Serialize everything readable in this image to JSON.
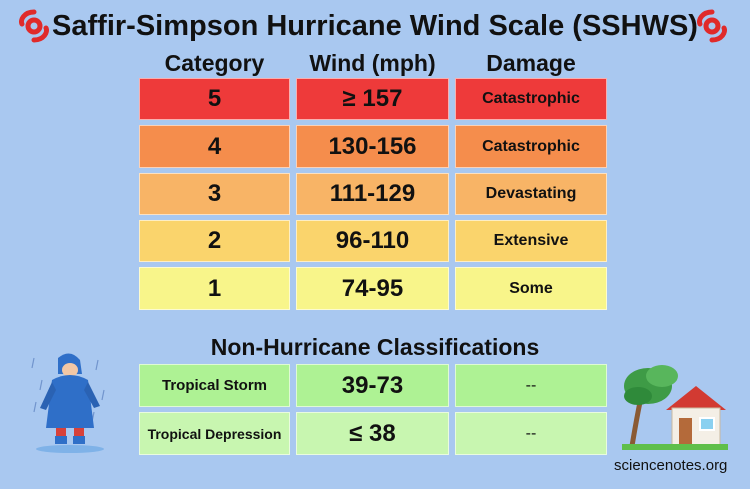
{
  "title": "Saffir-Simpson Hurricane Wind Scale (SSHWS)",
  "headers": {
    "category": "Category",
    "wind": "Wind (mph)",
    "damage": "Damage"
  },
  "hurricane_rows": [
    {
      "category": "5",
      "wind": "≥ 157",
      "damage": "Catastrophic",
      "color": "#ee3a3a"
    },
    {
      "category": "4",
      "wind": "130-156",
      "damage": "Catastrophic",
      "color": "#f58d4c"
    },
    {
      "category": "3",
      "wind": "111-129",
      "damage": "Devastating",
      "color": "#f8b466"
    },
    {
      "category": "2",
      "wind": "96-110",
      "damage": "Extensive",
      "color": "#fad46c"
    },
    {
      "category": "1",
      "wind": "74-95",
      "damage": "Some",
      "color": "#f8f58a"
    }
  ],
  "non_hurricane_title": "Non-Hurricane Classifications",
  "non_hurricane_rows": [
    {
      "name": "Tropical Storm",
      "wind": "39-73",
      "damage": "--",
      "color": "#aef294"
    },
    {
      "name": "Tropical Depression",
      "wind": "≤ 38",
      "damage": "--",
      "color": "#c8f6b0"
    }
  ],
  "credit": "sciencenotes.org",
  "icons": {
    "title_left": "hurricane-icon",
    "title_right": "hurricane-icon",
    "bottom_left": "person-in-raincoat-icon",
    "bottom_right": "house-with-wind-blown-tree-icon"
  }
}
